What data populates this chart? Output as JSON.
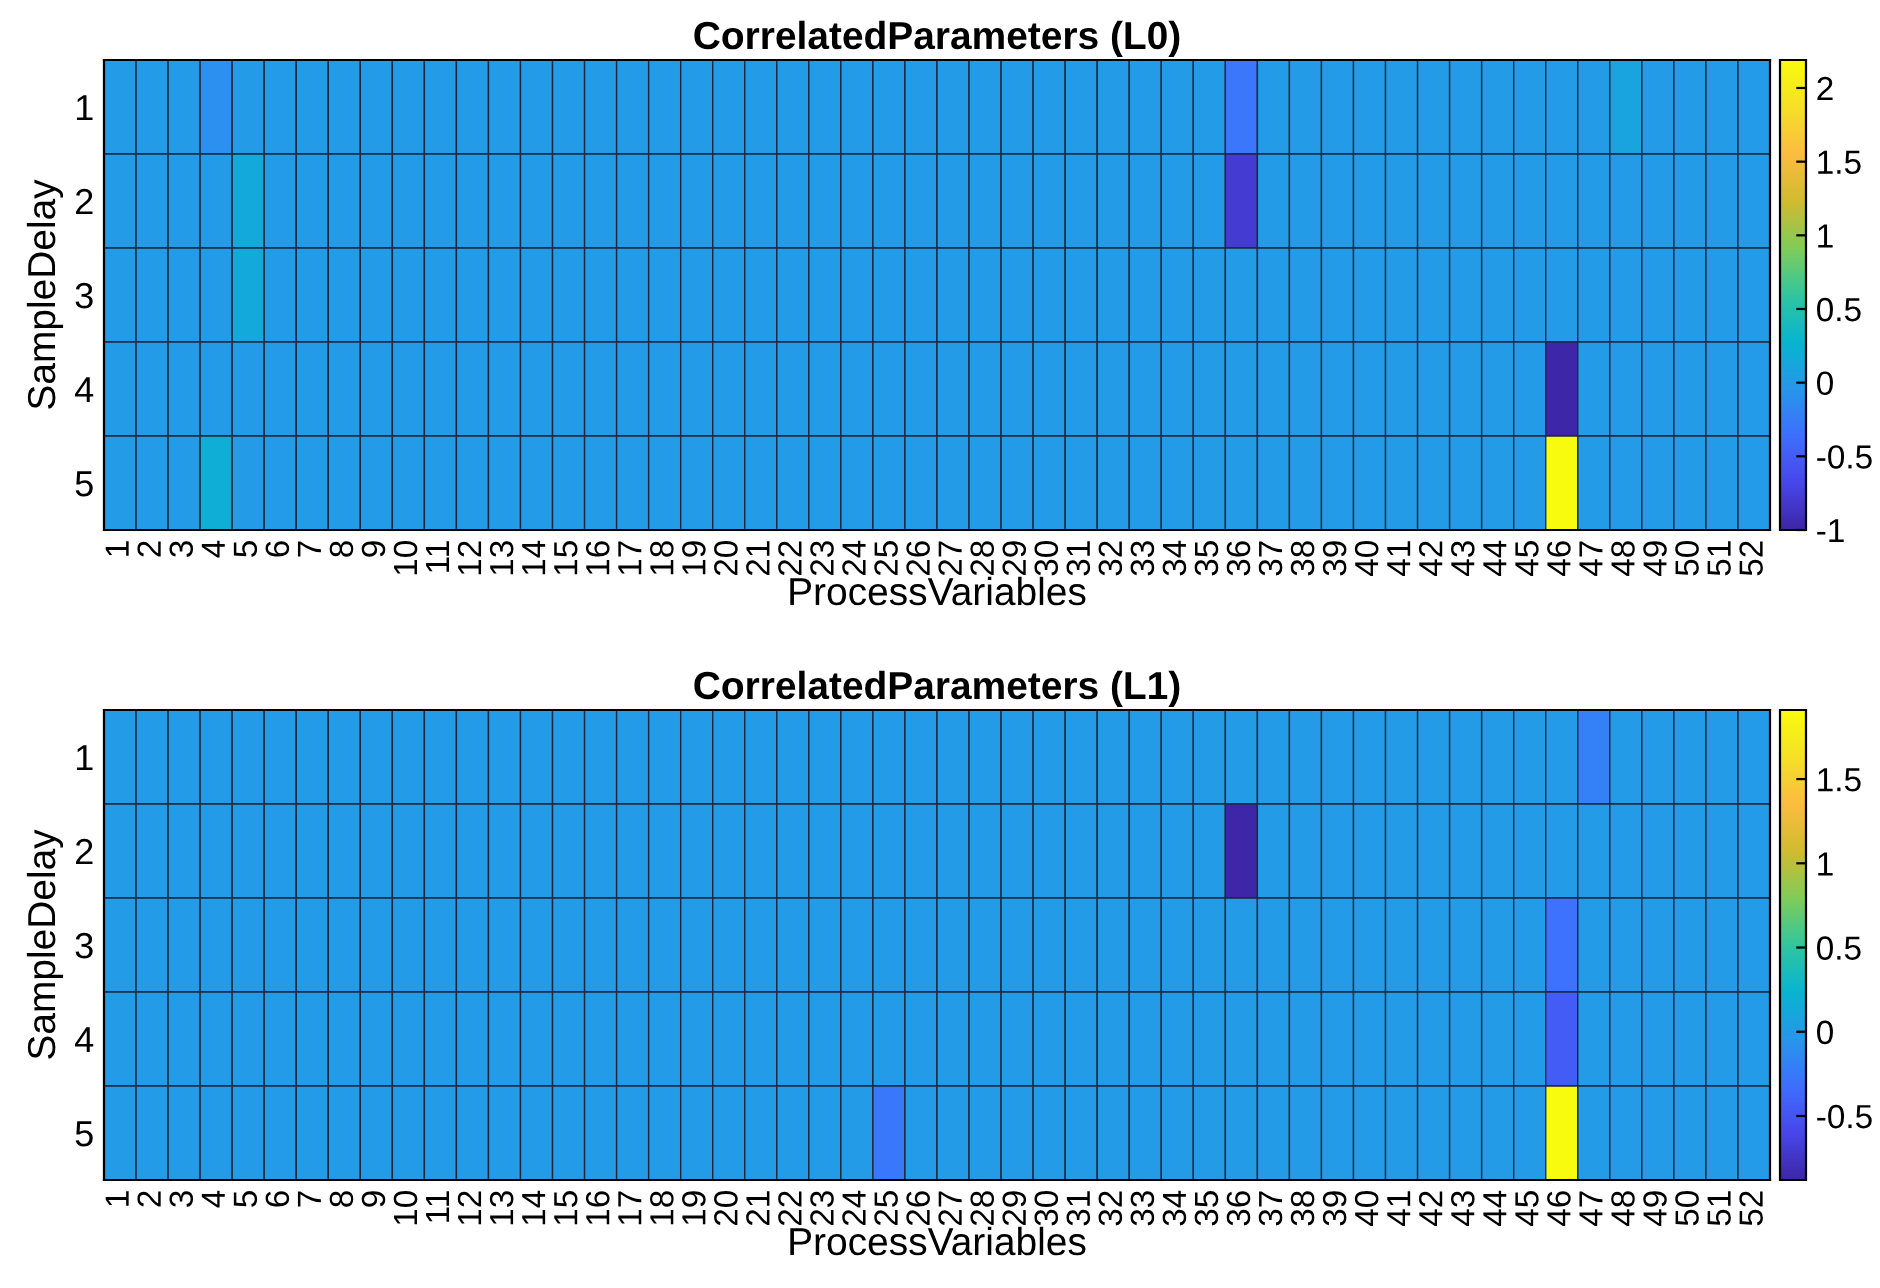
{
  "chart_data": [
    {
      "type": "heatmap",
      "title": "CorrelatedParameters (L0)",
      "xlabel": "ProcessVariables",
      "ylabel": "SampleDelay",
      "categories": [
        "1",
        "2",
        "3",
        "4",
        "5",
        "6",
        "7",
        "8",
        "9",
        "10",
        "11",
        "12",
        "13",
        "14",
        "15",
        "16",
        "17",
        "18",
        "19",
        "20",
        "21",
        "22",
        "23",
        "24",
        "25",
        "26",
        "27",
        "28",
        "29",
        "30",
        "31",
        "32",
        "33",
        "34",
        "35",
        "36",
        "37",
        "38",
        "39",
        "40",
        "41",
        "42",
        "43",
        "44",
        "45",
        "46",
        "47",
        "48",
        "49",
        "50",
        "51",
        "52"
      ],
      "y_categories": [
        "1",
        "2",
        "3",
        "4",
        "5"
      ],
      "cells": [
        [
          0,
          0,
          0,
          -0.1,
          0,
          0,
          0,
          0,
          0,
          0,
          0,
          0,
          0,
          0,
          0,
          0,
          0,
          0,
          0,
          0,
          0,
          0,
          0,
          0,
          0,
          0,
          0,
          0,
          0,
          0,
          0,
          0,
          0,
          0,
          0,
          -0.3,
          0,
          0,
          0,
          0,
          0,
          0,
          0,
          0,
          0,
          0,
          0,
          0.1,
          0,
          0,
          0,
          0
        ],
        [
          0,
          0,
          0,
          0,
          0.15,
          0,
          0,
          0,
          0,
          0,
          0,
          0,
          0,
          0,
          0,
          0,
          0,
          0,
          0,
          0,
          0,
          0,
          0,
          0,
          0,
          0,
          0,
          0,
          0,
          0,
          0,
          0,
          0,
          0,
          0,
          -0.8,
          0,
          0,
          0,
          0,
          0,
          0,
          0,
          0,
          0,
          0,
          0,
          0,
          0,
          0,
          0,
          0
        ],
        [
          0,
          0,
          0,
          0,
          0.15,
          0,
          0,
          0,
          0,
          0,
          0,
          0,
          0,
          0,
          0,
          0,
          0,
          0,
          0,
          0,
          0,
          0,
          0,
          0,
          0,
          0,
          0,
          0,
          0,
          0,
          0,
          0,
          0,
          0,
          0,
          0,
          0,
          0,
          0,
          0,
          0,
          0,
          0,
          0,
          0,
          0,
          0,
          0,
          0,
          0,
          0,
          0
        ],
        [
          0,
          0,
          0,
          0,
          0,
          0,
          0,
          0,
          0,
          0,
          0,
          0,
          0,
          0,
          0,
          0,
          0,
          0,
          0,
          0,
          0,
          0,
          0,
          0,
          0,
          0,
          0,
          0,
          0,
          0,
          0,
          0,
          0,
          0,
          0,
          0,
          0,
          0,
          0,
          0,
          0,
          0,
          0,
          0,
          0,
          -1.0,
          0,
          0,
          0,
          0,
          0,
          0
        ],
        [
          0,
          0,
          0,
          0.2,
          0,
          0,
          0,
          0,
          0,
          0,
          0,
          0,
          0,
          0,
          0,
          0,
          0,
          0,
          0,
          0,
          0,
          0,
          0,
          0,
          0,
          0,
          0,
          0,
          0,
          0,
          0,
          0,
          0,
          0,
          0,
          0,
          0,
          0,
          0,
          0,
          0,
          0,
          0,
          0,
          0,
          2.19,
          0,
          0,
          0,
          0,
          0,
          0
        ]
      ],
      "clim": [
        -1.0,
        2.19
      ],
      "cticks": [
        -1,
        -0.5,
        0,
        0.5,
        1,
        1.5,
        2
      ]
    },
    {
      "type": "heatmap",
      "title": "CorrelatedParameters (L1)",
      "xlabel": "ProcessVariables",
      "ylabel": "SampleDelay",
      "categories": [
        "1",
        "2",
        "3",
        "4",
        "5",
        "6",
        "7",
        "8",
        "9",
        "10",
        "11",
        "12",
        "13",
        "14",
        "15",
        "16",
        "17",
        "18",
        "19",
        "20",
        "21",
        "22",
        "23",
        "24",
        "25",
        "26",
        "27",
        "28",
        "29",
        "30",
        "31",
        "32",
        "33",
        "34",
        "35",
        "36",
        "37",
        "38",
        "39",
        "40",
        "41",
        "42",
        "43",
        "44",
        "45",
        "46",
        "47",
        "48",
        "49",
        "50",
        "51",
        "52"
      ],
      "y_categories": [
        "1",
        "2",
        "3",
        "4",
        "5"
      ],
      "cells": [
        [
          0,
          0,
          0,
          0,
          0,
          0,
          0,
          0,
          0,
          0,
          0,
          0,
          0,
          0,
          0,
          0,
          0,
          0,
          0,
          0,
          0,
          0,
          0,
          0,
          0,
          0,
          0,
          0,
          0,
          0,
          0,
          0,
          0,
          0,
          0,
          0,
          0,
          0,
          0,
          0,
          0,
          0,
          0,
          0,
          0,
          0,
          -0.2,
          0,
          0,
          0,
          0,
          0
        ],
        [
          0,
          0,
          0,
          0,
          0,
          0,
          0,
          0,
          0,
          0,
          0,
          0,
          0,
          0,
          0,
          0,
          0,
          0,
          0,
          0,
          0,
          0,
          0,
          0,
          0,
          0,
          0,
          0,
          0,
          0,
          0,
          0,
          0,
          0,
          0,
          -0.88,
          0,
          0,
          0,
          0,
          0,
          0,
          0,
          0,
          0,
          0,
          0,
          0,
          0,
          0,
          0,
          0
        ],
        [
          0,
          0,
          0,
          0,
          0,
          0,
          0,
          0,
          0,
          0,
          0,
          0,
          0,
          0,
          0,
          0,
          0,
          0,
          0,
          0,
          0,
          0,
          0,
          0,
          0,
          0,
          0,
          0,
          0,
          0,
          0,
          0,
          0,
          0,
          0,
          0,
          0,
          0,
          0,
          0,
          0,
          0,
          0,
          0,
          0,
          -0.3,
          0,
          0,
          0,
          0,
          0,
          0
        ],
        [
          0,
          0,
          0,
          0,
          0,
          0,
          0,
          0,
          0,
          0,
          0,
          0,
          0,
          0,
          0,
          0,
          0,
          0,
          0,
          0,
          0,
          0,
          0,
          0,
          0,
          0,
          0,
          0,
          0,
          0,
          0,
          0,
          0,
          0,
          0,
          0,
          0,
          0,
          0,
          0,
          0,
          0,
          0,
          0,
          0,
          -0.45,
          0,
          0,
          0,
          0,
          0,
          0
        ],
        [
          0,
          0,
          0,
          0,
          0,
          0,
          0,
          0,
          0,
          0,
          0,
          0,
          0,
          0,
          0,
          0,
          0,
          0,
          0,
          0,
          0,
          0,
          0,
          0,
          -0.25,
          0,
          0,
          0,
          0,
          0,
          0,
          0,
          0,
          0,
          0,
          0,
          0,
          0,
          0,
          0,
          0,
          0,
          0,
          0,
          0,
          1.91,
          0,
          0,
          0,
          0,
          0,
          0
        ]
      ],
      "clim": [
        -0.88,
        1.91
      ],
      "cticks": [
        -0.5,
        0,
        0.5,
        1,
        1.5
      ]
    }
  ]
}
